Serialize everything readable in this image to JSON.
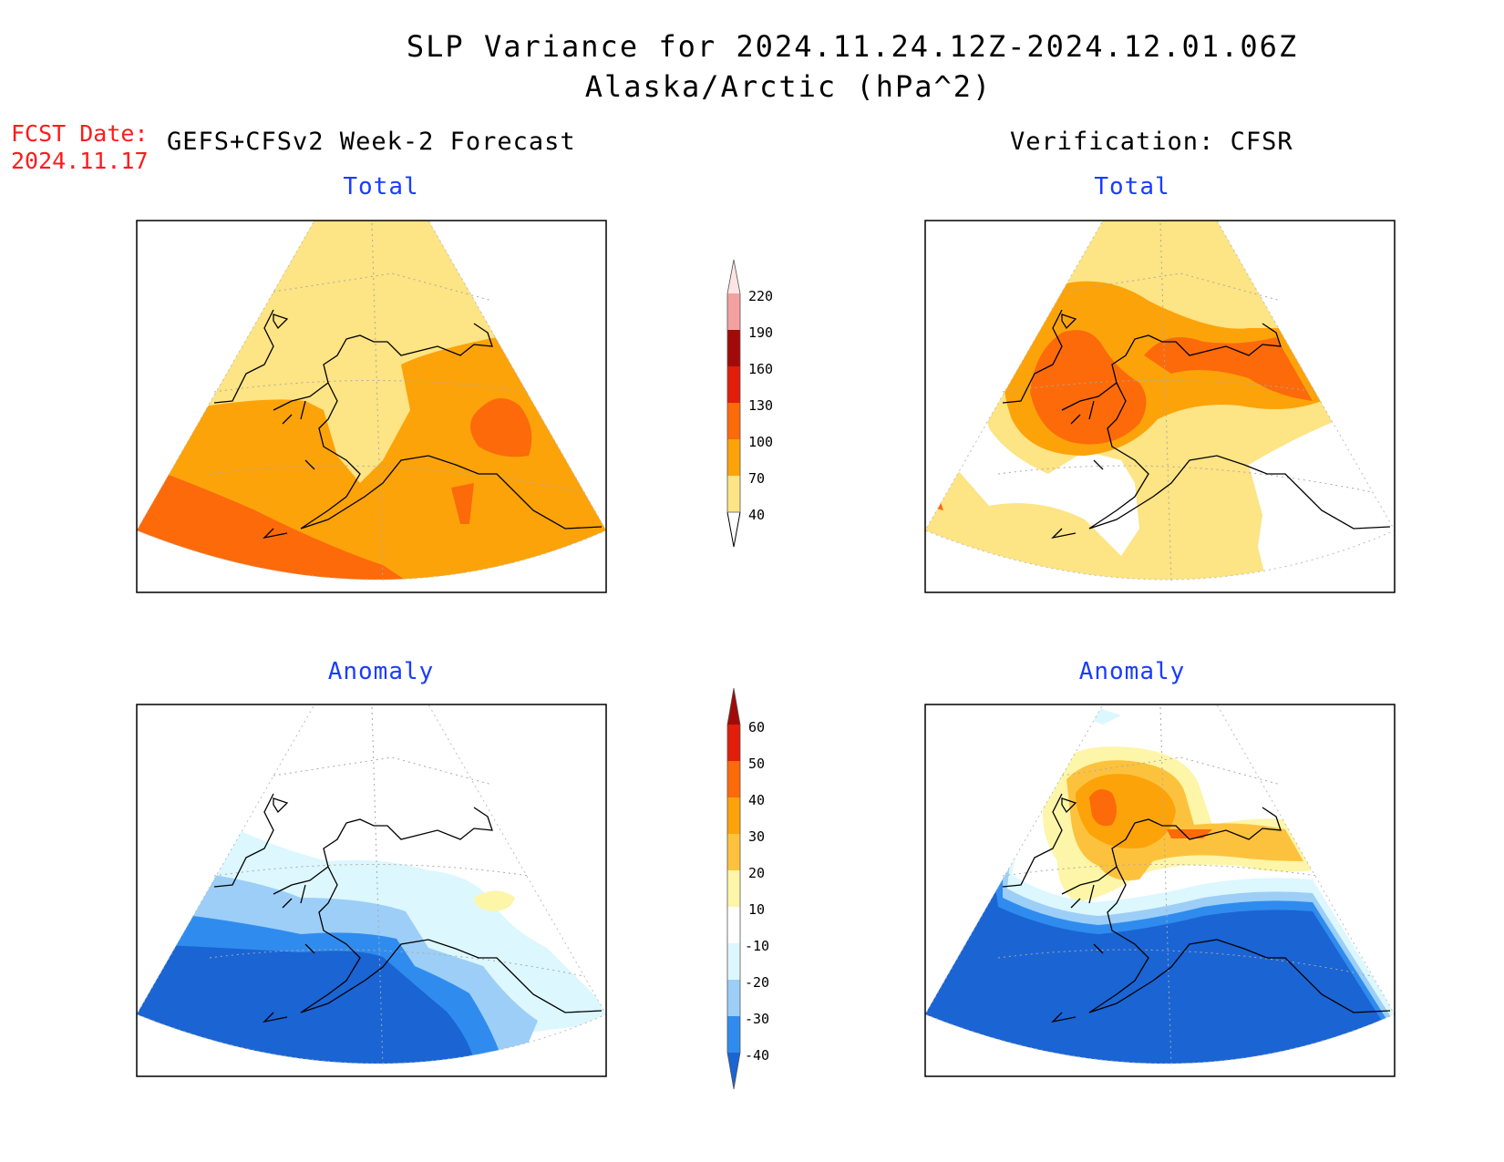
{
  "title": {
    "line1": "SLP Variance for 2024.11.24.12Z-2024.12.01.06Z",
    "line2": "Alaska/Arctic (hPa^2)"
  },
  "forecast": {
    "label": "FCST Date:",
    "date": "2024.11.17",
    "header": "GEFS+CFSv2 Week-2 Forecast"
  },
  "verification": {
    "header": "Verification: CFSR"
  },
  "panels": {
    "fcst_total": "Total",
    "verif_total": "Total",
    "fcst_anomaly": "Anomaly",
    "verif_anomaly": "Anomaly"
  },
  "colorbars": {
    "total": {
      "labels": [
        "40",
        "70",
        "100",
        "130",
        "160",
        "190",
        "220"
      ],
      "colors": [
        "#fde484",
        "#fca30a",
        "#fc6a0a",
        "#e01e0a",
        "#a20a0a",
        "#f4a0a0",
        "#fde5e5"
      ]
    },
    "anomaly": {
      "labels": [
        "-40",
        "-30",
        "-20",
        "-10",
        "10",
        "20",
        "30",
        "40",
        "50",
        "60"
      ],
      "colors": [
        "#1a64d4",
        "#2f8cee",
        "#9ccef7",
        "#dcf7fd",
        "#ffffff",
        "#fdf5a8",
        "#fdc23d",
        "#fca30a",
        "#fc6a0a",
        "#e01e0a",
        "#a20a0a"
      ]
    }
  },
  "colors": {
    "title_red": "#ff1a1a",
    "panel_title_blue": "#1a3cff"
  }
}
